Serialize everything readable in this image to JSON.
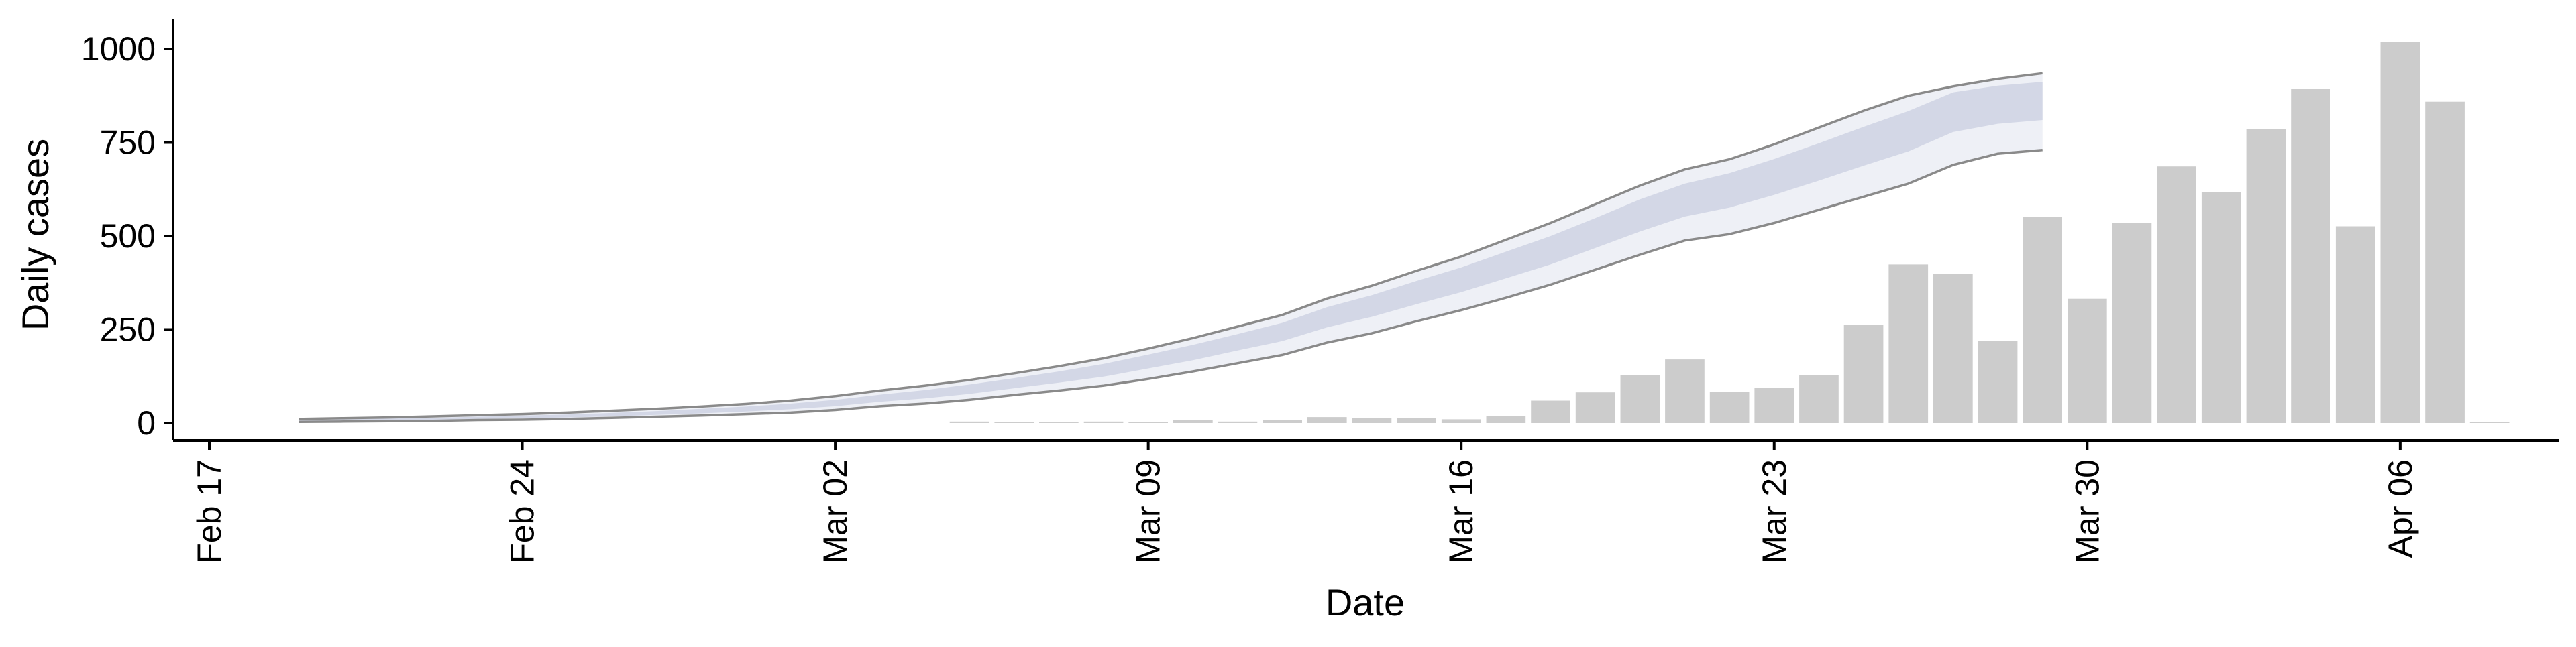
{
  "chart_data": {
    "type": "bar",
    "title": "",
    "xlabel": "Date",
    "ylabel": "Daily cases",
    "x_ticks": [
      "Feb 17",
      "Feb 24",
      "Mar 02",
      "Mar 09",
      "Mar 16",
      "Mar 23",
      "Mar 30",
      "Apr 06"
    ],
    "y_ticks": [
      "0",
      "250",
      "500",
      "750",
      "1000"
    ],
    "xlim": [
      "2020-02-17",
      "2020-04-10"
    ],
    "ylim": [
      0,
      1000
    ],
    "grid": false,
    "legend": "none",
    "colors": {
      "bars": "#cccccc",
      "band_outer": "#eef0f6",
      "band_inner": "#d3d7e6",
      "band_edge": "#8a8a8a",
      "axis": "#000000"
    },
    "bars": {
      "name": "",
      "x": [
        "2020-03-05",
        "2020-03-06",
        "2020-03-07",
        "2020-03-08",
        "2020-03-09",
        "2020-03-10",
        "2020-03-11",
        "2020-03-12",
        "2020-03-13",
        "2020-03-14",
        "2020-03-15",
        "2020-03-16",
        "2020-03-17",
        "2020-03-18",
        "2020-03-19",
        "2020-03-20",
        "2020-03-21",
        "2020-03-22",
        "2020-03-23",
        "2020-03-24",
        "2020-03-25",
        "2020-03-26",
        "2020-03-27",
        "2020-03-28",
        "2020-03-29",
        "2020-03-30",
        "2020-03-31",
        "2020-04-01",
        "2020-04-02",
        "2020-04-03",
        "2020-04-04",
        "2020-04-05",
        "2020-04-06",
        "2020-04-07",
        "2020-04-08"
      ],
      "values": [
        4,
        3,
        0,
        4,
        0,
        8,
        4,
        9,
        16,
        13,
        13,
        10,
        19,
        60,
        82,
        129,
        170,
        84,
        95,
        129,
        262,
        424,
        399,
        219,
        551,
        332,
        535,
        686,
        618,
        785,
        894,
        526,
        1018,
        859,
        0
      ]
    },
    "estimate_band": {
      "name": "",
      "x": [
        "2020-02-19",
        "2020-02-20",
        "2020-02-21",
        "2020-02-22",
        "2020-02-23",
        "2020-02-24",
        "2020-02-25",
        "2020-02-26",
        "2020-02-27",
        "2020-02-28",
        "2020-02-29",
        "2020-03-01",
        "2020-03-02",
        "2020-03-03",
        "2020-03-04",
        "2020-03-05",
        "2020-03-06",
        "2020-03-07",
        "2020-03-08",
        "2020-03-09",
        "2020-03-10",
        "2020-03-11",
        "2020-03-12",
        "2020-03-13",
        "2020-03-14",
        "2020-03-15",
        "2020-03-16",
        "2020-03-17",
        "2020-03-18",
        "2020-03-19",
        "2020-03-20",
        "2020-03-21",
        "2020-03-22",
        "2020-03-23",
        "2020-03-24",
        "2020-03-25",
        "2020-03-26",
        "2020-03-27",
        "2020-03-28",
        "2020-03-29"
      ],
      "lower_outer": [
        3,
        4,
        5,
        6,
        8,
        9,
        11,
        14,
        17,
        20,
        24,
        28,
        35,
        45,
        52,
        62,
        75,
        87,
        100,
        118,
        138,
        160,
        182,
        215,
        240,
        272,
        302,
        335,
        370,
        410,
        450,
        488,
        505,
        535,
        570,
        605,
        640,
        690,
        720,
        730
      ],
      "lower_inner": [
        5,
        6,
        7,
        9,
        11,
        13,
        15,
        18,
        22,
        26,
        31,
        37,
        45,
        57,
        66,
        78,
        93,
        108,
        124,
        146,
        168,
        194,
        219,
        256,
        284,
        318,
        350,
        387,
        424,
        468,
        512,
        552,
        576,
        610,
        648,
        688,
        726,
        778,
        800,
        810
      ],
      "upper_inner": [
        8,
        10,
        12,
        14,
        17,
        20,
        23,
        27,
        32,
        38,
        44,
        52,
        62,
        76,
        88,
        103,
        120,
        138,
        158,
        183,
        209,
        238,
        268,
        310,
        342,
        380,
        416,
        458,
        500,
        548,
        598,
        640,
        668,
        706,
        748,
        792,
        834,
        884,
        902,
        912
      ],
      "upper_outer": [
        11,
        13,
        15,
        18,
        21,
        24,
        28,
        33,
        38,
        44,
        51,
        60,
        72,
        87,
        100,
        115,
        133,
        152,
        173,
        199,
        227,
        258,
        289,
        333,
        367,
        407,
        445,
        490,
        535,
        585,
        635,
        678,
        705,
        745,
        790,
        835,
        875,
        900,
        920,
        935
      ]
    }
  }
}
